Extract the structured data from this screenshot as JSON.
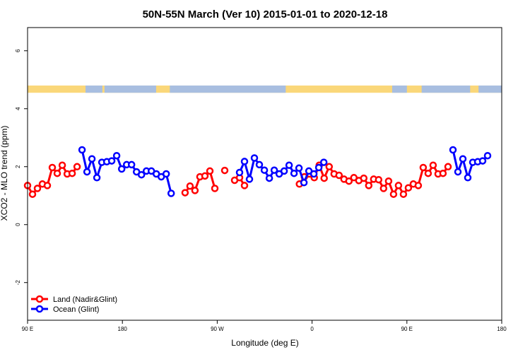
{
  "chart_data": {
    "type": "line",
    "title": "50N-55N March (Ver 10)   2015-01-01 to 2020-12-18",
    "xlabel": "Longitude (deg E)",
    "ylabel": "XCO2 - MLO trend (ppm)",
    "x_ticks": [
      {
        "value": 90,
        "label": "90 E"
      },
      {
        "value": 180,
        "label": "180"
      },
      {
        "value": 270,
        "label": "90 W"
      },
      {
        "value": 360,
        "label": "0"
      },
      {
        "value": 450,
        "label": "90 E"
      },
      {
        "value": 540,
        "label": "180"
      }
    ],
    "y_ticks": [
      -2,
      0,
      2,
      4,
      6
    ],
    "xlim": [
      90,
      540
    ],
    "ylim": [
      -3.3,
      6.8
    ],
    "grid": false,
    "legend_position": "bottom-left",
    "land_ocean_strip": {
      "y_range": [
        4.55,
        4.8
      ],
      "land_color": "#FAD77A",
      "ocean_color": "#A8BEE0",
      "ocean_spans": [
        [
          145,
          161
        ],
        [
          163,
          212
        ],
        [
          225,
          335
        ],
        [
          436,
          450
        ],
        [
          464,
          510
        ],
        [
          518,
          540
        ]
      ]
    },
    "series": [
      {
        "name": "Land (Nadir&Glint)",
        "color": "#FF0000",
        "segments": [
          [
            [
              90,
              1.35
            ],
            [
              94.7,
              1.05
            ],
            [
              99.4,
              1.25
            ],
            [
              104.1,
              1.4
            ],
            [
              108.8,
              1.35
            ],
            [
              113.5,
              1.97
            ],
            [
              118.2,
              1.77
            ],
            [
              122.9,
              2.05
            ],
            [
              127.6,
              1.75
            ],
            [
              132.3,
              1.77
            ],
            [
              137,
              2.0
            ]
          ],
          [
            [
              239.5,
              1.1
            ],
            [
              244.2,
              1.33
            ],
            [
              248.9,
              1.18
            ],
            [
              253.6,
              1.65
            ],
            [
              258.3,
              1.68
            ],
            [
              263,
              1.85
            ],
            [
              267.7,
              1.25
            ]
          ],
          [
            [
              277.1,
              1.87
            ]
          ],
          [
            [
              286.5,
              1.53
            ],
            [
              291.2,
              1.62
            ],
            [
              295.9,
              1.35
            ]
          ],
          [
            [
              348,
              1.4
            ],
            [
              352.7,
              1.65
            ],
            [
              357.4,
              1.75
            ],
            [
              362.1,
              1.62
            ],
            [
              366.8,
              2.05
            ],
            [
              371.5,
              1.6
            ],
            [
              376.2,
              2.0
            ],
            [
              380.9,
              1.75
            ],
            [
              385.6,
              1.7
            ],
            [
              390.3,
              1.57
            ],
            [
              395,
              1.5
            ],
            [
              399.7,
              1.62
            ],
            [
              404.4,
              1.52
            ],
            [
              409.1,
              1.6
            ],
            [
              413.8,
              1.35
            ],
            [
              418.5,
              1.57
            ],
            [
              423.2,
              1.55
            ],
            [
              427.9,
              1.25
            ],
            [
              432.6,
              1.5
            ],
            [
              437.3,
              1.05
            ],
            [
              442,
              1.35
            ],
            [
              446.7,
              1.05
            ],
            [
              451.4,
              1.27
            ],
            [
              456.1,
              1.4
            ],
            [
              460.8,
              1.35
            ],
            [
              465.5,
              1.97
            ],
            [
              470.2,
              1.77
            ],
            [
              474.9,
              2.05
            ],
            [
              479.6,
              1.75
            ],
            [
              484.3,
              1.77
            ],
            [
              489,
              2.0
            ]
          ]
        ]
      },
      {
        "name": "Ocean (Glint)",
        "color": "#0000FF",
        "segments": [
          [
            [
              141.7,
              2.58
            ],
            [
              146.4,
              1.82
            ],
            [
              151.1,
              2.27
            ],
            [
              155.8,
              1.62
            ],
            [
              160.5,
              2.15
            ],
            [
              165.2,
              2.17
            ],
            [
              169.9,
              2.2
            ],
            [
              174.6,
              2.38
            ],
            [
              179.3,
              1.92
            ],
            [
              184,
              2.07
            ],
            [
              188.7,
              2.07
            ],
            [
              193.4,
              1.82
            ],
            [
              198.1,
              1.72
            ],
            [
              202.8,
              1.85
            ],
            [
              207.5,
              1.85
            ],
            [
              212.2,
              1.75
            ],
            [
              216.9,
              1.65
            ],
            [
              221.6,
              1.75
            ],
            [
              226.3,
              1.08
            ]
          ],
          [
            [
              291.2,
              1.8
            ],
            [
              295.9,
              2.18
            ],
            [
              300.6,
              1.57
            ],
            [
              305.3,
              2.3
            ],
            [
              310,
              2.07
            ],
            [
              314.7,
              1.88
            ],
            [
              319.4,
              1.6
            ],
            [
              324.1,
              1.88
            ],
            [
              328.8,
              1.75
            ],
            [
              333.5,
              1.85
            ],
            [
              338.2,
              2.05
            ],
            [
              342.9,
              1.77
            ],
            [
              347.6,
              1.95
            ],
            [
              352.3,
              1.45
            ],
            [
              357,
              1.85
            ],
            [
              361.7,
              1.75
            ],
            [
              366.4,
              1.97
            ],
            [
              371.1,
              2.15
            ]
          ],
          [
            [
              493.7,
              2.58
            ],
            [
              498.4,
              1.82
            ],
            [
              503.1,
              2.27
            ],
            [
              507.8,
              1.62
            ],
            [
              512.5,
              2.15
            ],
            [
              517.2,
              2.17
            ],
            [
              521.9,
              2.2
            ],
            [
              526.6,
              2.38
            ]
          ]
        ]
      }
    ]
  }
}
